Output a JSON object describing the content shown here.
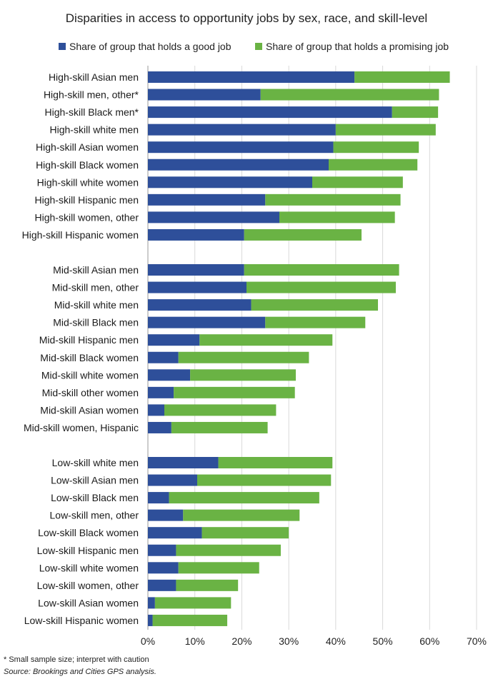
{
  "chart_data": {
    "type": "bar",
    "orientation": "horizontal",
    "stacked": true,
    "title": "Disparities in access to opportunity jobs by sex, race, and skill-level",
    "categories": [
      "High-skill Asian men",
      "High-skill men, other*",
      "High-skill Black men*",
      "High-skill white men",
      "High-skill Asian women",
      "High-skill Black women",
      "High-skill white women",
      "High-skill Hispanic men",
      "High-skill women, other",
      "High-skill Hispanic women",
      "Mid-skill Asian men",
      "Mid-skill men, other",
      "Mid-skill white men",
      "Mid-skill Black men",
      "Mid-skill Hispanic men",
      "Mid-skill Black women",
      "Mid-skill white women",
      "Mid-skill other women",
      "Mid-skill Asian women",
      "Mid-skill women, Hispanic",
      "Low-skill white men",
      "Low-skill Asian men",
      "Low-skill Black men",
      "Low-skill men, other",
      "Low-skill Black women",
      "Low-skill Hispanic men",
      "Low-skill white women",
      "Low-skill women, other",
      "Low-skill Asian women",
      "Low-skill Hispanic women"
    ],
    "groups": [
      {
        "start": 0,
        "count": 10
      },
      {
        "start": 10,
        "count": 10
      },
      {
        "start": 20,
        "count": 10
      }
    ],
    "series": [
      {
        "name": "Share of group that holds a good job",
        "color": "#2e4f9a",
        "values": [
          44,
          24,
          52,
          40,
          39.5,
          38.5,
          35,
          25,
          28,
          20.5,
          20.5,
          21,
          22,
          25,
          11,
          6.5,
          9,
          5.5,
          3.5,
          5,
          15,
          10.5,
          4.5,
          7.5,
          11.5,
          6,
          6.5,
          6,
          1.5,
          1
        ]
      },
      {
        "name": "Share of group that holds a promising job",
        "color": "#6ab344",
        "values": [
          20.3,
          38,
          9.8,
          21.3,
          18.2,
          18.9,
          19.3,
          28.8,
          24.6,
          25,
          33,
          31.8,
          27,
          21.3,
          28.3,
          27.8,
          22.5,
          25.8,
          23.8,
          20.5,
          24.3,
          28.5,
          32,
          24.8,
          18.5,
          22.3,
          17.2,
          13.2,
          16.2,
          15.9
        ]
      }
    ],
    "x_ticks": [
      "0%",
      "10%",
      "20%",
      "30%",
      "40%",
      "50%",
      "60%",
      "70%"
    ],
    "xlim": [
      0,
      70
    ],
    "grid": "vertical",
    "legend_position": "top"
  },
  "notes": {
    "footnote": "* Small sample size; interpret with caution",
    "source": "Source: Brookings and Cities GPS analysis."
  }
}
